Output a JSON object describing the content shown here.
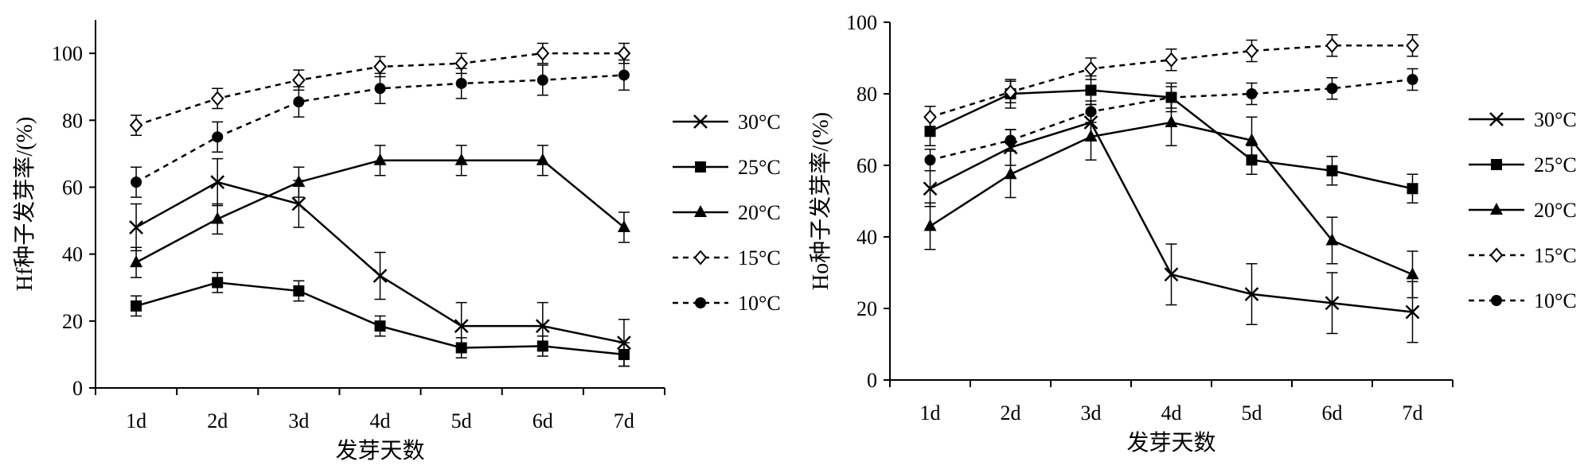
{
  "chart_data": [
    {
      "type": "line",
      "xlabel": "发芽天数",
      "ylabel": "Hf种子发芽率/(%)",
      "categories": [
        "1d",
        "2d",
        "3d",
        "4d",
        "5d",
        "6d",
        "7d"
      ],
      "ylim": [
        0,
        110
      ],
      "yticks": [
        0,
        20,
        40,
        60,
        80,
        100
      ],
      "legend_position": "right",
      "series": [
        {
          "name": "30°C",
          "marker": "x",
          "dashed": false,
          "values": [
            48,
            61.5,
            55,
            33.5,
            18.5,
            18.5,
            13.5
          ],
          "errors": [
            7,
            7,
            7,
            7,
            7,
            7,
            7
          ]
        },
        {
          "name": "25°C",
          "marker": "square",
          "dashed": false,
          "values": [
            24.5,
            31.5,
            29,
            18.5,
            12,
            12.5,
            10
          ],
          "errors": [
            3,
            3,
            3,
            3,
            3,
            3,
            3.5
          ]
        },
        {
          "name": "20°C",
          "marker": "triangle",
          "dashed": false,
          "values": [
            37.5,
            50.5,
            61.5,
            68,
            68,
            68,
            48
          ],
          "errors": [
            4.5,
            4.5,
            4.5,
            4.5,
            4.5,
            4.5,
            4.5
          ]
        },
        {
          "name": "15°C",
          "marker": "diamond-open",
          "dashed": true,
          "values": [
            78.5,
            86.5,
            92,
            96,
            97,
            100,
            100
          ],
          "errors": [
            3,
            3,
            3,
            3,
            3,
            3,
            3
          ]
        },
        {
          "name": "10°C",
          "marker": "circle",
          "dashed": true,
          "values": [
            61.5,
            75,
            85.5,
            89.5,
            91,
            92,
            93.5
          ],
          "errors": [
            4.5,
            4.5,
            4.5,
            4.5,
            4.5,
            4.5,
            4.5
          ]
        }
      ]
    },
    {
      "type": "line",
      "xlabel": "发芽天数",
      "ylabel": "Ho种子发芽率/(%)",
      "categories": [
        "1d",
        "2d",
        "3d",
        "4d",
        "5d",
        "6d",
        "7d"
      ],
      "ylim": [
        0,
        100
      ],
      "yticks": [
        0,
        20,
        40,
        60,
        80,
        100
      ],
      "legend_position": "right",
      "series": [
        {
          "name": "30°C",
          "marker": "x",
          "dashed": false,
          "values": [
            53.5,
            65,
            72,
            29.5,
            24,
            21.5,
            19
          ],
          "errors": [
            5,
            5,
            5,
            8.5,
            8.5,
            8.5,
            8.5
          ]
        },
        {
          "name": "25°C",
          "marker": "square",
          "dashed": false,
          "values": [
            69.5,
            80,
            81,
            79,
            61.5,
            58.5,
            53.5
          ],
          "errors": [
            4,
            4,
            4,
            4,
            4,
            4,
            4
          ]
        },
        {
          "name": "20°C",
          "marker": "triangle",
          "dashed": false,
          "values": [
            43,
            57.5,
            68,
            72,
            67,
            39,
            29.5
          ],
          "errors": [
            6.5,
            6.5,
            6.5,
            6.5,
            6.5,
            6.5,
            6.5
          ]
        },
        {
          "name": "15°C",
          "marker": "diamond-open",
          "dashed": true,
          "values": [
            73.5,
            80.5,
            87,
            89.5,
            92,
            93.5,
            93.5
          ],
          "errors": [
            3,
            3,
            3,
            3,
            3,
            3,
            3
          ]
        },
        {
          "name": "10°C",
          "marker": "circle",
          "dashed": true,
          "values": [
            61.5,
            67,
            75,
            79,
            80,
            81.5,
            84
          ],
          "errors": [
            3,
            3,
            3,
            3,
            3,
            3,
            3
          ]
        }
      ]
    }
  ]
}
